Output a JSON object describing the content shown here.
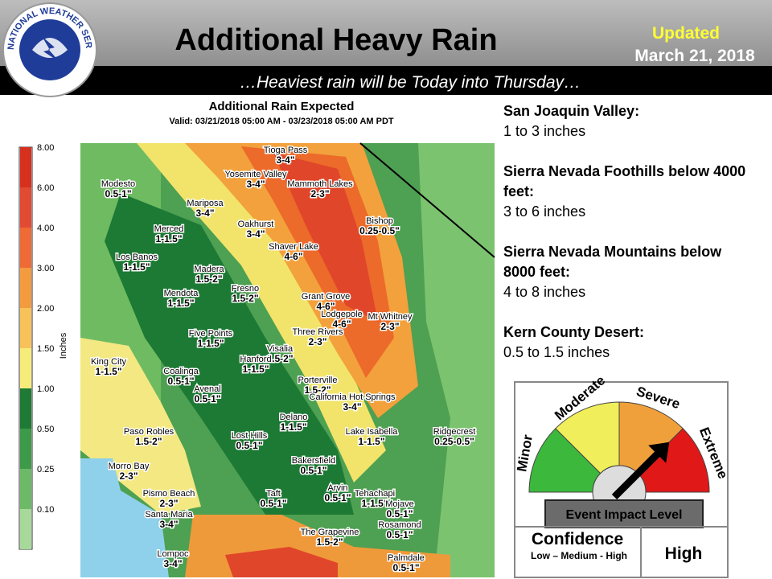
{
  "header": {
    "title": "Additional Heavy Rain",
    "updated": "Updated",
    "date": "March 21, 2018",
    "subtitle": "…Heaviest rain will be Today into Thursday…",
    "logo_text": "NATIONAL WEATHER SERVICE"
  },
  "map": {
    "title": "Additional Rain Expected",
    "valid": "Valid: 03/21/2018 05:00 AM - 03/23/2018 05:00 AM PDT",
    "legend_unit": "Inches",
    "legend": [
      "8.00",
      "6.00",
      "4.00",
      "3.00",
      "2.00",
      "1.50",
      "1.00",
      "0.50",
      "0.25",
      "0.10"
    ],
    "locations": [
      {
        "name": "Tioga Pass",
        "amount": "3-4\""
      },
      {
        "name": "Yosemite Valley",
        "amount": "3-4\""
      },
      {
        "name": "Mammoth Lakes",
        "amount": "2-3\""
      },
      {
        "name": "Modesto",
        "amount": "0.5-1\""
      },
      {
        "name": "Mariposa",
        "amount": "3-4\""
      },
      {
        "name": "Bishop",
        "amount": "0.25-0.5\""
      },
      {
        "name": "Oakhurst",
        "amount": "3-4\""
      },
      {
        "name": "Merced",
        "amount": "1-1.5\""
      },
      {
        "name": "Shaver Lake",
        "amount": "4-6\""
      },
      {
        "name": "Los Banos",
        "amount": "1-1.5\""
      },
      {
        "name": "Madera",
        "amount": "1.5-2\""
      },
      {
        "name": "Fresno",
        "amount": "1.5-2\""
      },
      {
        "name": "Grant Grove",
        "amount": "4-6\""
      },
      {
        "name": "Mendota",
        "amount": "1-1.5\""
      },
      {
        "name": "Lodgepole",
        "amount": "4-6\""
      },
      {
        "name": "Mt Whitney",
        "amount": "2-3\""
      },
      {
        "name": "Three Rivers",
        "amount": "2-3\""
      },
      {
        "name": "Five Points",
        "amount": "1-1.5\""
      },
      {
        "name": "Visalia",
        "amount": "1.5-2\""
      },
      {
        "name": "King City",
        "amount": "1-1.5\""
      },
      {
        "name": "Hanford",
        "amount": "1-1.5\""
      },
      {
        "name": "Coalinga",
        "amount": "0.5-1\""
      },
      {
        "name": "Avenal",
        "amount": "0.5-1\""
      },
      {
        "name": "Porterville",
        "amount": "1.5-2\""
      },
      {
        "name": "California Hot Springs",
        "amount": "3-4\""
      },
      {
        "name": "Delano",
        "amount": "1-1.5\""
      },
      {
        "name": "Paso Robles",
        "amount": "1.5-2\""
      },
      {
        "name": "Lost Hills",
        "amount": "0.5-1\""
      },
      {
        "name": "Lake Isabella",
        "amount": "1-1.5\""
      },
      {
        "name": "Ridgecrest",
        "amount": "0.25-0.5\""
      },
      {
        "name": "Bakersfield",
        "amount": "0.5-1\""
      },
      {
        "name": "Morro Bay",
        "amount": "2-3\""
      },
      {
        "name": "Pismo Beach",
        "amount": "2-3\""
      },
      {
        "name": "Taft",
        "amount": "0.5-1\""
      },
      {
        "name": "Arvin",
        "amount": "0.5-1\""
      },
      {
        "name": "Tehachapi",
        "amount": "1-1.5\""
      },
      {
        "name": "Mojave",
        "amount": "0.5-1\""
      },
      {
        "name": "Santa Maria",
        "amount": "3-4\""
      },
      {
        "name": "Rosamond",
        "amount": "0.5-1\""
      },
      {
        "name": "The Grapevine",
        "amount": "1.5-2\""
      },
      {
        "name": "Lompoc",
        "amount": "3-4\""
      },
      {
        "name": "Palmdale",
        "amount": "0.5-1\""
      }
    ]
  },
  "outlook": [
    {
      "region": "San Joaquin Valley:",
      "amount": "1 to 3 inches"
    },
    {
      "region": "Sierra Nevada Foothills below 4000 feet:",
      "amount": "3 to 6 inches"
    },
    {
      "region": "Sierra Nevada Mountains below 8000 feet:",
      "amount": "4 to 8 inches"
    },
    {
      "region": "Kern County Desert:",
      "amount": "0.5 to 1.5 inches"
    }
  ],
  "impact": {
    "levels": [
      "Minor",
      "Moderate",
      "Severe",
      "Extreme"
    ],
    "label": "Event Impact Level"
  },
  "confidence": {
    "title": "Confidence",
    "scale": "Low – Medium - High",
    "value": "High"
  }
}
